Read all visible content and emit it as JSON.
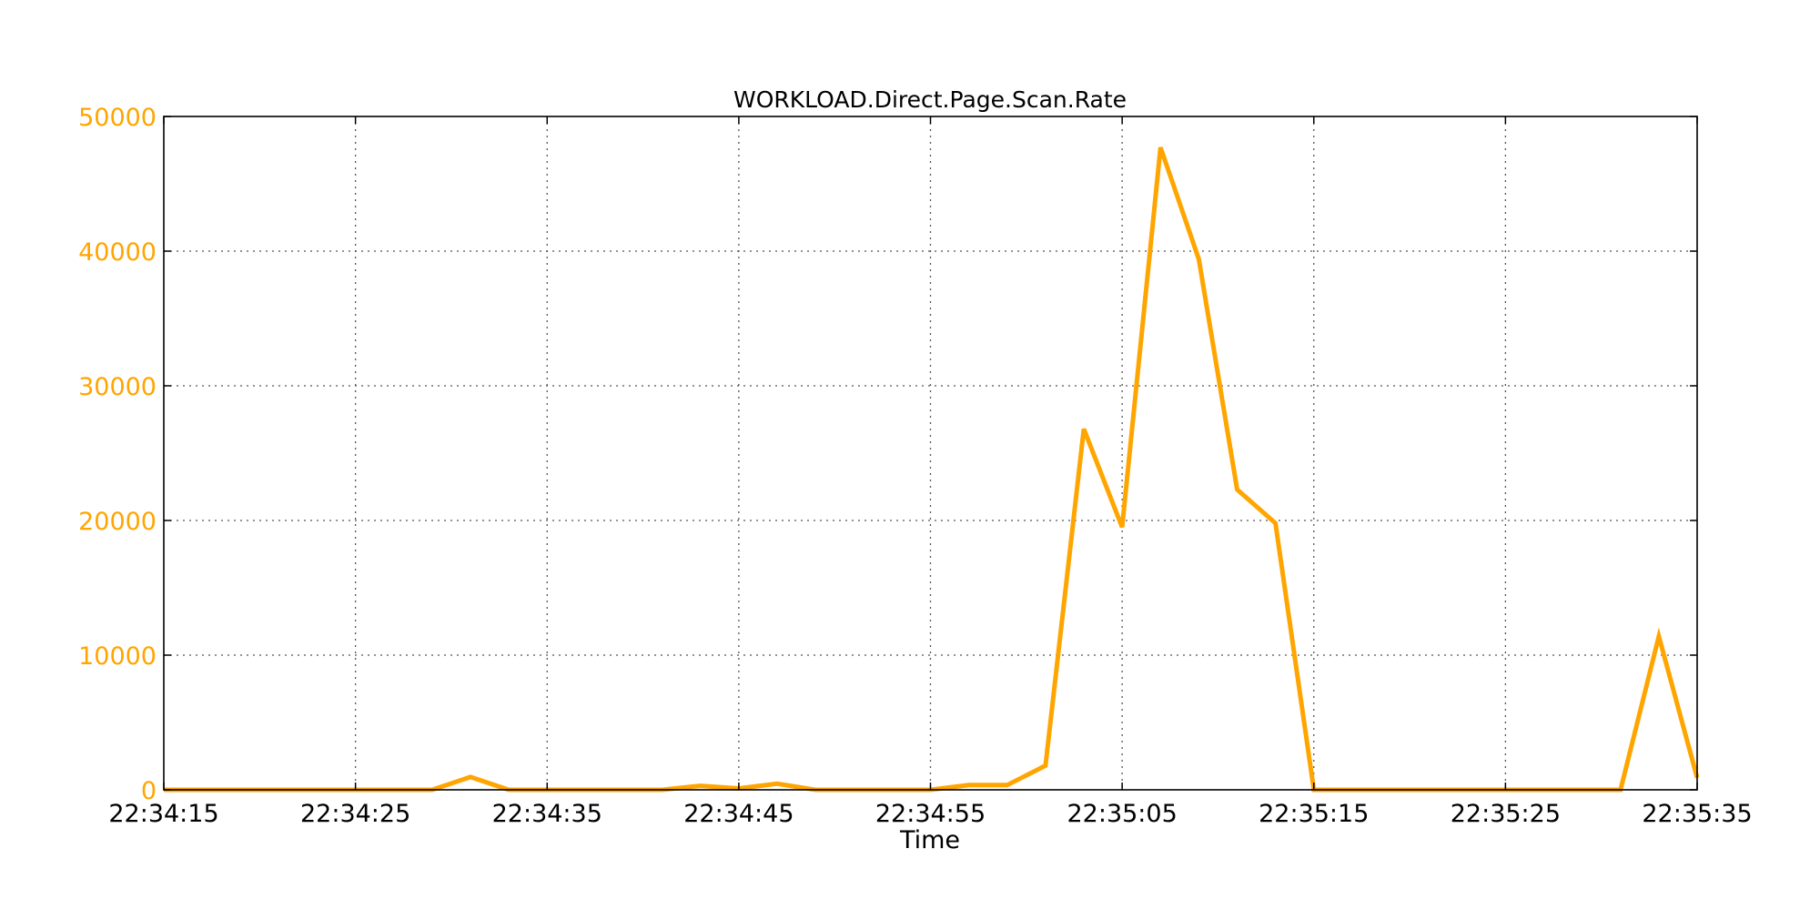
{
  "chart_data": {
    "type": "line",
    "title": "WORKLOAD.Direct.Page.Scan.Rate",
    "xlabel": "Time",
    "ylabel": "",
    "xlim_seconds": [
      0,
      80
    ],
    "ylim": [
      0,
      50000
    ],
    "grid": true,
    "legend": "none",
    "x_ticks": [
      {
        "label": "22:34:15",
        "t": 0
      },
      {
        "label": "22:34:25",
        "t": 10
      },
      {
        "label": "22:34:35",
        "t": 20
      },
      {
        "label": "22:34:45",
        "t": 30
      },
      {
        "label": "22:34:55",
        "t": 40
      },
      {
        "label": "22:35:05",
        "t": 50
      },
      {
        "label": "22:35:15",
        "t": 60
      },
      {
        "label": "22:35:25",
        "t": 70
      },
      {
        "label": "22:35:35",
        "t": 80
      }
    ],
    "y_ticks": [
      "0",
      "10000",
      "20000",
      "30000",
      "40000",
      "50000"
    ],
    "series": [
      {
        "color": "#FFA500",
        "points": [
          {
            "t": 0,
            "y": 0
          },
          {
            "t": 14,
            "y": 0
          },
          {
            "t": 16,
            "y": 950
          },
          {
            "t": 18,
            "y": 0
          },
          {
            "t": 26,
            "y": 0
          },
          {
            "t": 28,
            "y": 300
          },
          {
            "t": 30,
            "y": 100
          },
          {
            "t": 32,
            "y": 450
          },
          {
            "t": 34,
            "y": 0
          },
          {
            "t": 40,
            "y": 0
          },
          {
            "t": 42,
            "y": 350
          },
          {
            "t": 44,
            "y": 350
          },
          {
            "t": 46,
            "y": 1800
          },
          {
            "t": 48,
            "y": 26800
          },
          {
            "t": 50,
            "y": 19500
          },
          {
            "t": 52,
            "y": 47700
          },
          {
            "t": 54,
            "y": 39400
          },
          {
            "t": 56,
            "y": 22300
          },
          {
            "t": 58,
            "y": 19800
          },
          {
            "t": 60,
            "y": 0
          },
          {
            "t": 76,
            "y": 0
          },
          {
            "t": 78,
            "y": 11400
          },
          {
            "t": 80,
            "y": 900
          }
        ]
      }
    ]
  }
}
